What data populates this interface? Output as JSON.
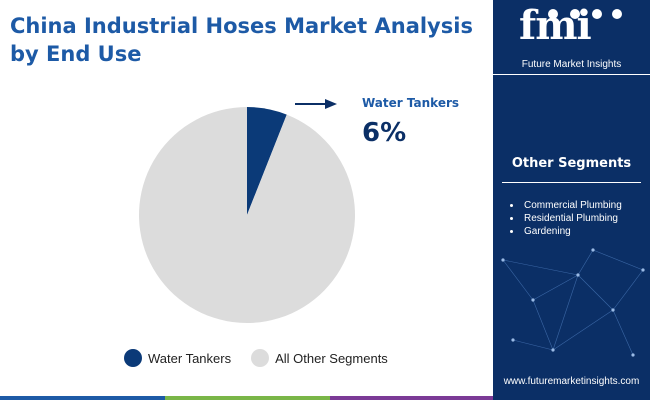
{
  "title": "China Industrial Hoses Market Analysis by End Use",
  "chart_data": {
    "type": "pie",
    "slices": [
      {
        "label": "Water Tankers",
        "value": 6,
        "color": "#0b3a78"
      },
      {
        "label": "All Other Segments",
        "value": 94,
        "color": "#dcdcdc"
      }
    ],
    "legend": [
      "Water Tankers",
      "All Other Segments"
    ],
    "legend_position": "bottom",
    "callout": {
      "label": "Water Tankers",
      "value": "6%"
    }
  },
  "sidebar": {
    "logo_text": "fmi",
    "logo_caption": "Future Market Insights",
    "segments_title": "Other Segments",
    "segments": [
      "Commercial Plumbing",
      "Residential Plumbing",
      "Gardening"
    ],
    "website": "www.futuremarketinsights.com"
  },
  "colors": {
    "accent": "#1d5aa6",
    "sidebar_bg": "#0b2f66",
    "bottom_bar": [
      "#1d5aa6",
      "#7ab648",
      "#e98a1e",
      "#7b3a96"
    ]
  }
}
